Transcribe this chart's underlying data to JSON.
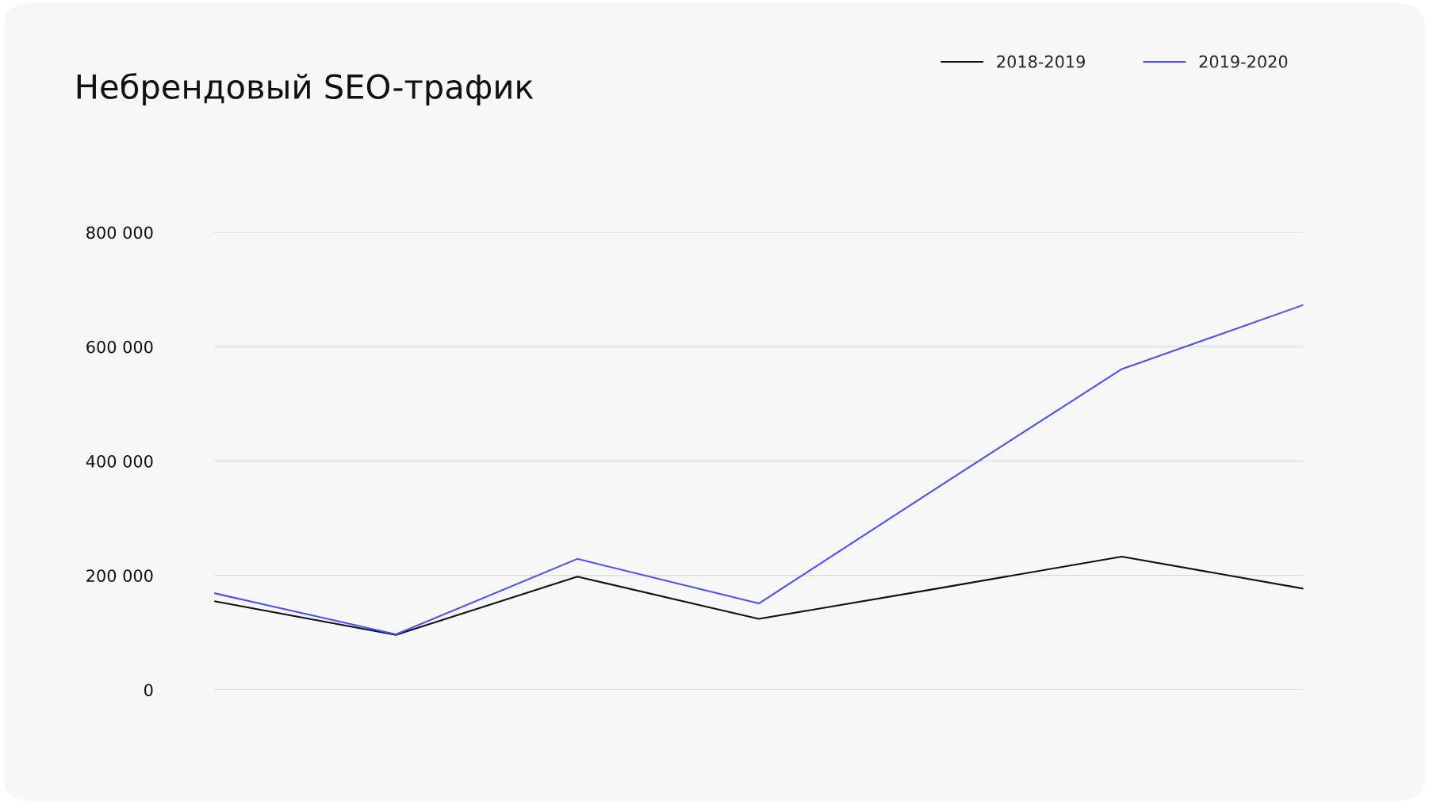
{
  "chart_data": {
    "type": "line",
    "title": "Небрендовый SEO-трафик",
    "categories": [
      null,
      null,
      null,
      null,
      null,
      null,
      null
    ],
    "series": [
      {
        "name": "2018-2019",
        "color": "#111111",
        "values": [
          155000,
          96000,
          198000,
          124000,
          178000,
          233000,
          177000
        ]
      },
      {
        "name": "2019-2020",
        "color": "#4a52f5",
        "values": [
          169000,
          97000,
          229000,
          151000,
          357000,
          561000,
          673000
        ]
      }
    ],
    "ylim": [
      0,
      800000
    ],
    "yticks": [
      {
        "value": 0,
        "label": "0"
      },
      {
        "value": 200000,
        "label": "200 000"
      },
      {
        "value": 400000,
        "label": "400 000"
      },
      {
        "value": 600000,
        "label": "600 000"
      },
      {
        "value": 800000,
        "label": "800 000"
      }
    ],
    "grid": "y",
    "legend": "top right",
    "marker": "none",
    "line_style": "solid"
  }
}
